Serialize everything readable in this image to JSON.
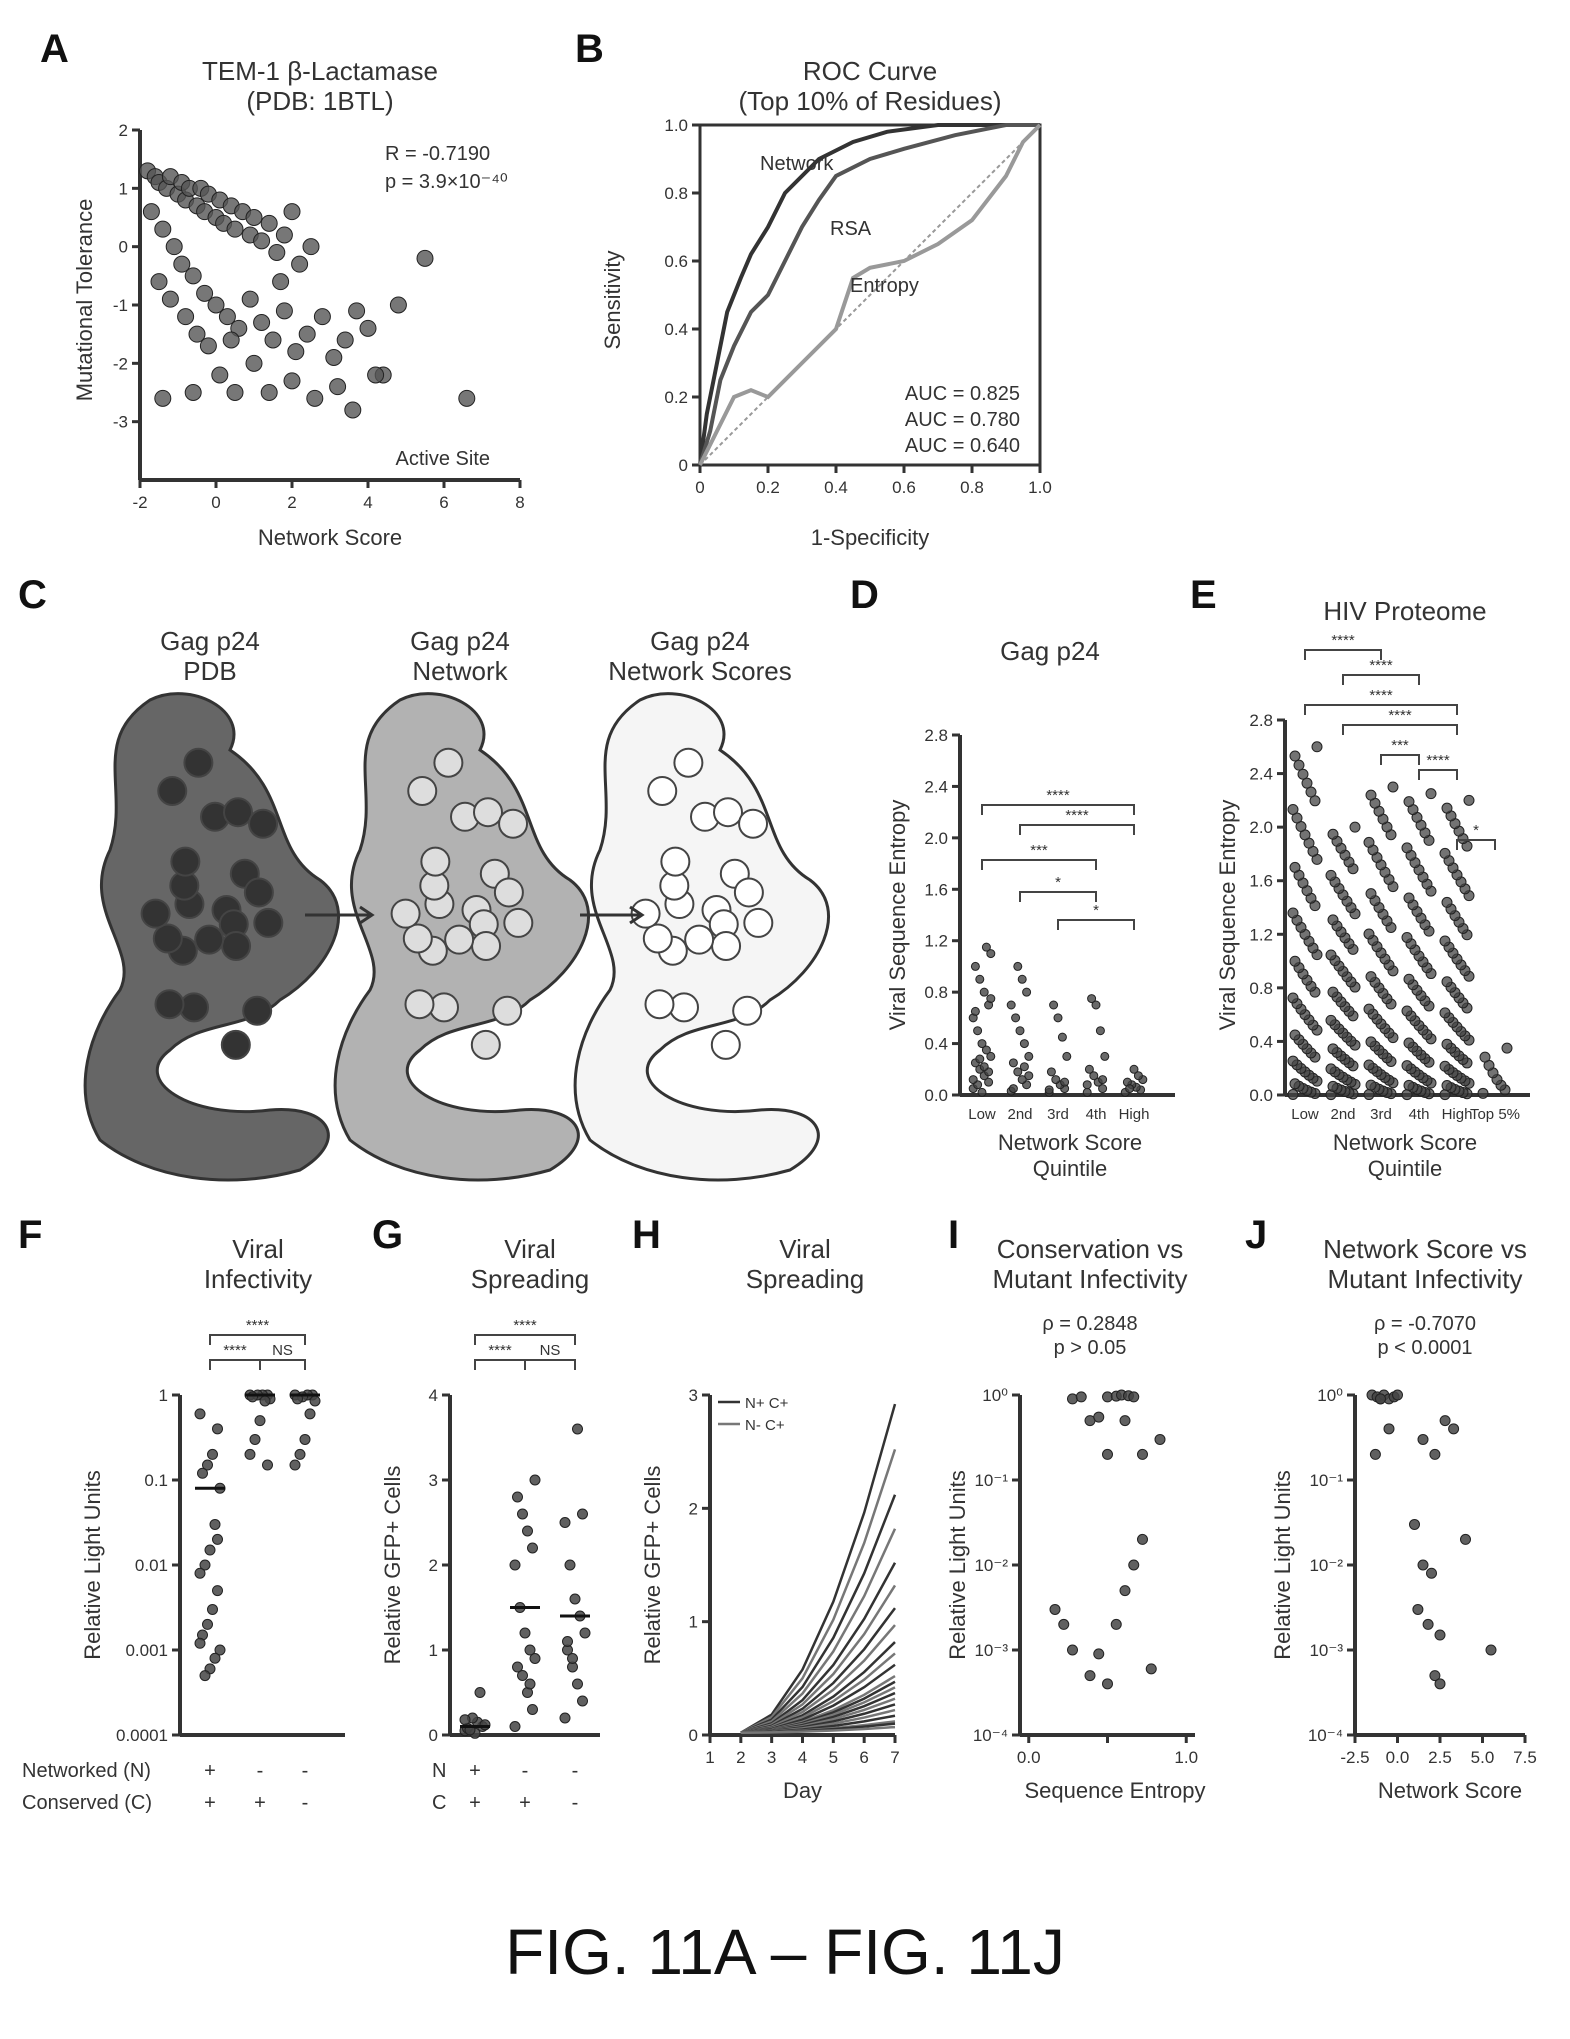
{
  "caption": "FIG. 11A – FIG. 11J",
  "panels": {
    "A": {
      "letter": "A",
      "title_lines": [
        "TEM-1 β-Lactamase",
        "(PDB: 1BTL)"
      ],
      "stats_lines": [
        "R = -0.7190",
        "p = 3.9×10⁻⁴⁰"
      ],
      "annotation": "Active Site"
    },
    "B": {
      "letter": "B",
      "title_lines": [
        "ROC Curve",
        "(Top 10% of Residues)"
      ],
      "auc_lines": [
        "AUC = 0.825",
        "AUC = 0.780",
        "AUC = 0.640"
      ]
    },
    "C": {
      "letter": "C",
      "images": [
        {
          "label_lines": [
            "Gag p24",
            "PDB"
          ]
        },
        {
          "label_lines": [
            "Gag p24",
            "Network"
          ]
        },
        {
          "label_lines": [
            "Gag p24",
            "Network Scores"
          ]
        }
      ]
    },
    "D": {
      "letter": "D",
      "title_lines": [
        "Gag p24"
      ]
    },
    "E": {
      "letter": "E",
      "title_lines": [
        "HIV Proteome"
      ]
    },
    "F": {
      "letter": "F",
      "title_lines": [
        "Viral",
        "Infectivity"
      ],
      "row_labels": [
        "Networked (N)",
        "Conserved (C)"
      ],
      "row_values": [
        [
          "+",
          "-",
          "-"
        ],
        [
          "+",
          "+",
          "-"
        ]
      ]
    },
    "G": {
      "letter": "G",
      "title_lines": [
        "Viral",
        "Spreading"
      ],
      "row_labels": [
        "N",
        "C"
      ],
      "row_values": [
        [
          "+",
          "-",
          "-"
        ],
        [
          "+",
          "+",
          "-"
        ]
      ]
    },
    "H": {
      "letter": "H",
      "title_lines": [
        "Viral",
        "Spreading"
      ]
    },
    "I": {
      "letter": "I",
      "title_lines": [
        "Conservation vs",
        "Mutant Infectivity"
      ],
      "stats_lines": [
        "ρ = 0.2848",
        "p > 0.05"
      ]
    },
    "J": {
      "letter": "J",
      "title_lines": [
        "Network Score vs",
        "Mutant Infectivity"
      ],
      "stats_lines": [
        "ρ = -0.7070",
        "p < 0.0001"
      ]
    }
  },
  "chart_data": [
    {
      "panel": "A",
      "type": "scatter",
      "xlabel": "Network Score",
      "ylabel": "Mutational Tolerance",
      "xlim": [
        -2,
        8
      ],
      "ylim": [
        -4,
        2
      ],
      "xticks": [
        "-2",
        "0",
        "2",
        "4",
        "6",
        "8"
      ],
      "yticks": [
        "-3",
        "-2",
        "-1",
        "0",
        "1",
        "2"
      ],
      "points": [
        [
          -1.8,
          1.3
        ],
        [
          -1.6,
          1.2
        ],
        [
          -1.5,
          1.1
        ],
        [
          -1.3,
          1.0
        ],
        [
          -1.2,
          1.2
        ],
        [
          -1.0,
          0.9
        ],
        [
          -0.9,
          1.1
        ],
        [
          -0.8,
          0.8
        ],
        [
          -0.7,
          1.0
        ],
        [
          -0.5,
          0.7
        ],
        [
          -0.4,
          1.0
        ],
        [
          -0.3,
          0.6
        ],
        [
          -0.2,
          0.9
        ],
        [
          0.0,
          0.5
        ],
        [
          0.1,
          0.8
        ],
        [
          0.2,
          0.4
        ],
        [
          0.4,
          0.7
        ],
        [
          0.5,
          0.3
        ],
        [
          0.7,
          0.6
        ],
        [
          0.9,
          0.2
        ],
        [
          1.0,
          0.5
        ],
        [
          1.2,
          0.1
        ],
        [
          1.4,
          0.4
        ],
        [
          1.6,
          -0.1
        ],
        [
          1.8,
          0.2
        ],
        [
          2.0,
          0.6
        ],
        [
          2.2,
          -0.3
        ],
        [
          2.5,
          0.0
        ],
        [
          -1.7,
          0.6
        ],
        [
          -1.4,
          0.3
        ],
        [
          -1.1,
          0.0
        ],
        [
          -0.9,
          -0.3
        ],
        [
          -0.6,
          -0.5
        ],
        [
          -0.3,
          -0.8
        ],
        [
          0.0,
          -1.0
        ],
        [
          0.3,
          -1.2
        ],
        [
          0.6,
          -1.4
        ],
        [
          0.9,
          -0.9
        ],
        [
          1.2,
          -1.3
        ],
        [
          1.5,
          -1.6
        ],
        [
          1.8,
          -1.1
        ],
        [
          2.1,
          -1.8
        ],
        [
          2.4,
          -1.5
        ],
        [
          2.8,
          -1.2
        ],
        [
          3.1,
          -1.9
        ],
        [
          3.4,
          -1.6
        ],
        [
          3.7,
          -1.1
        ],
        [
          4.0,
          -1.4
        ],
        [
          4.4,
          -2.2
        ],
        [
          4.8,
          -1.0
        ],
        [
          -1.5,
          -0.6
        ],
        [
          -1.2,
          -0.9
        ],
        [
          -0.8,
          -1.2
        ],
        [
          -0.5,
          -1.5
        ],
        [
          -0.2,
          -1.7
        ],
        [
          0.1,
          -2.2
        ],
        [
          0.5,
          -2.5
        ],
        [
          1.0,
          -2.0
        ],
        [
          1.4,
          -2.5
        ],
        [
          2.0,
          -2.3
        ],
        [
          2.6,
          -2.6
        ],
        [
          3.2,
          -2.4
        ],
        [
          3.6,
          -2.8
        ],
        [
          4.2,
          -2.2
        ],
        [
          5.5,
          -0.2
        ],
        [
          6.6,
          -2.6
        ],
        [
          -1.4,
          -2.6
        ],
        [
          -0.6,
          -2.5
        ],
        [
          0.4,
          -1.6
        ],
        [
          1.7,
          -0.6
        ]
      ]
    },
    {
      "panel": "B",
      "type": "line",
      "xlabel": "1-Specificity",
      "ylabel": "Sensitivity",
      "xlim": [
        0,
        1
      ],
      "ylim": [
        0,
        1
      ],
      "xticks": [
        "0",
        "0.2",
        "0.4",
        "0.6",
        "0.8",
        "1.0"
      ],
      "yticks": [
        "0",
        "0.2",
        "0.4",
        "0.6",
        "0.8",
        "1.0"
      ],
      "series": [
        {
          "name": "Network",
          "x": [
            0,
            0.02,
            0.05,
            0.08,
            0.12,
            0.15,
            0.2,
            0.25,
            0.3,
            0.35,
            0.45,
            0.55,
            0.7,
            0.85,
            1.0
          ],
          "y": [
            0,
            0.15,
            0.3,
            0.45,
            0.55,
            0.62,
            0.7,
            0.8,
            0.85,
            0.9,
            0.95,
            0.98,
            1.0,
            1.0,
            1.0
          ]
        },
        {
          "name": "RSA",
          "x": [
            0,
            0.03,
            0.06,
            0.1,
            0.15,
            0.2,
            0.25,
            0.3,
            0.35,
            0.4,
            0.5,
            0.6,
            0.75,
            0.9,
            1.0
          ],
          "y": [
            0,
            0.1,
            0.25,
            0.35,
            0.45,
            0.5,
            0.6,
            0.7,
            0.78,
            0.85,
            0.9,
            0.93,
            0.97,
            1.0,
            1.0
          ]
        },
        {
          "name": "Entropy",
          "x": [
            0,
            0.05,
            0.1,
            0.15,
            0.2,
            0.3,
            0.4,
            0.45,
            0.5,
            0.6,
            0.7,
            0.8,
            0.9,
            0.95,
            1.0
          ],
          "y": [
            0,
            0.1,
            0.2,
            0.22,
            0.2,
            0.3,
            0.4,
            0.55,
            0.58,
            0.6,
            0.65,
            0.72,
            0.85,
            0.95,
            1.0
          ]
        }
      ]
    },
    {
      "panel": "D",
      "type": "scatter",
      "xlabel": "Network Score Quintile",
      "ylabel": "Viral Sequence Entropy",
      "ylim": [
        0,
        2.8
      ],
      "categories": [
        "Low",
        "2nd",
        "3rd",
        "4th",
        "High"
      ],
      "yticks": [
        "0.0",
        "0.4",
        "0.8",
        "1.2",
        "1.6",
        "2.0",
        "2.4",
        "2.8"
      ],
      "significance": [
        "****",
        "****",
        "***",
        "*",
        "*"
      ],
      "values": [
        [
          0.05,
          0.1,
          0.15,
          0.2,
          0.25,
          0.3,
          0.35,
          0.4,
          0.5,
          0.6,
          0.7,
          0.8,
          0.9,
          1.0,
          1.1,
          1.15,
          0.02,
          0.08,
          0.12,
          0.18,
          0.22,
          0.28,
          0.65,
          0.75
        ],
        [
          0.03,
          0.08,
          0.12,
          0.18,
          0.25,
          0.3,
          0.4,
          0.5,
          0.6,
          0.7,
          0.8,
          0.9,
          1.0,
          0.05,
          0.15,
          0.22
        ],
        [
          0.02,
          0.05,
          0.08,
          0.12,
          0.18,
          0.3,
          0.45,
          0.6,
          0.7,
          0.04,
          0.1
        ],
        [
          0.02,
          0.05,
          0.1,
          0.15,
          0.2,
          0.3,
          0.5,
          0.7,
          0.75,
          0.08,
          0.12
        ],
        [
          0.02,
          0.04,
          0.06,
          0.08,
          0.1,
          0.12,
          0.15,
          0.2,
          0.05
        ]
      ]
    },
    {
      "panel": "E",
      "type": "scatter",
      "xlabel": "Network Score Quintile",
      "ylabel": "Viral Sequence Entropy",
      "ylim": [
        0,
        2.8
      ],
      "categories": [
        "Low",
        "2nd",
        "3rd",
        "4th",
        "High",
        "Top 5%"
      ],
      "yticks": [
        "0.0",
        "0.4",
        "0.8",
        "1.2",
        "1.6",
        "2.0",
        "2.4",
        "2.8"
      ],
      "significance": [
        "****",
        "****",
        "****",
        "****",
        "***",
        "****",
        "*"
      ],
      "column_max": [
        2.6,
        2.0,
        2.3,
        2.25,
        2.2,
        0.35
      ]
    },
    {
      "panel": "F",
      "type": "scatter",
      "ylabel": "Relative Light Units",
      "yscale": "log",
      "ylim": [
        0.0001,
        1
      ],
      "yticks": [
        "0.0001",
        "0.001",
        "0.01",
        "0.1",
        "1"
      ],
      "significance": [
        "****",
        "****",
        "NS"
      ],
      "values": [
        [
          0.6,
          0.4,
          0.2,
          0.15,
          0.12,
          0.08,
          0.03,
          0.015,
          0.01,
          0.008,
          0.005,
          0.003,
          0.002,
          0.0015,
          0.001,
          0.0008,
          0.0006,
          0.0005,
          0.0012,
          0.02
        ],
        [
          1,
          1,
          1,
          1,
          0.95,
          0.9,
          0.85,
          0.5,
          0.3,
          0.2,
          0.15
        ],
        [
          1,
          1,
          1,
          0.95,
          0.9,
          0.85,
          0.6,
          0.3,
          0.2,
          0.15
        ]
      ],
      "medians": [
        0.08,
        1,
        1
      ]
    },
    {
      "panel": "G",
      "type": "scatter",
      "ylabel": "Relative GFP+ Cells",
      "ylim": [
        0,
        4
      ],
      "yticks": [
        "0",
        "1",
        "2",
        "3",
        "4"
      ],
      "significance": [
        "****",
        "****",
        "NS"
      ],
      "values": [
        [
          0.05,
          0.1,
          0.15,
          0.2,
          0.08,
          0.12,
          0.5,
          0.02,
          0.06,
          0.18
        ],
        [
          0.1,
          0.3,
          0.5,
          0.7,
          0.8,
          0.9,
          1.0,
          1.2,
          1.5,
          2.0,
          2.2,
          2.4,
          2.6,
          2.8,
          3.0,
          0.6
        ],
        [
          0.2,
          0.4,
          0.6,
          0.8,
          1.0,
          1.2,
          1.4,
          1.6,
          2.0,
          2.5,
          2.6,
          3.6,
          0.9,
          1.1
        ]
      ],
      "medians": [
        0.1,
        1.5,
        1.4
      ]
    },
    {
      "panel": "H",
      "type": "line",
      "xlabel": "Day",
      "ylabel": "Relative GFP+ Cells",
      "xlim": [
        1,
        7
      ],
      "ylim": [
        0,
        3
      ],
      "xticks": [
        "1",
        "2",
        "3",
        "4",
        "5",
        "6",
        "7"
      ],
      "yticks": [
        "0",
        "1",
        "2",
        "3"
      ],
      "legend": [
        "N+ C+",
        "N- C+"
      ],
      "final_values": [
        2.9,
        2.5,
        2.1,
        1.8,
        1.5,
        1.3,
        1.1,
        0.95,
        0.8,
        0.7,
        0.6,
        0.5,
        0.45,
        0.4,
        0.35,
        0.3,
        0.25,
        0.2,
        0.15,
        0.1,
        0.08,
        0.05
      ]
    },
    {
      "panel": "I",
      "type": "scatter",
      "xlabel": "Sequence Entropy",
      "ylabel": "Relative Light Units",
      "yscale": "log",
      "xlim": [
        0,
        1
      ],
      "xticks": [
        "0.0",
        "",
        "1.0"
      ],
      "yticks": [
        "10⁻⁴",
        "10⁻³",
        "10⁻²",
        "10⁻¹",
        "10⁰"
      ],
      "points": [
        [
          0.3,
          0.9
        ],
        [
          0.35,
          0.95
        ],
        [
          0.5,
          0.95
        ],
        [
          0.55,
          0.97
        ],
        [
          0.58,
          1
        ],
        [
          0.62,
          0.98
        ],
        [
          0.65,
          0.95
        ],
        [
          0.4,
          0.5
        ],
        [
          0.45,
          0.55
        ],
        [
          0.5,
          0.2
        ],
        [
          0.6,
          0.5
        ],
        [
          0.7,
          0.2
        ],
        [
          0.2,
          0.003
        ],
        [
          0.25,
          0.002
        ],
        [
          0.3,
          0.001
        ],
        [
          0.4,
          0.0005
        ],
        [
          0.5,
          0.0004
        ],
        [
          0.6,
          0.005
        ],
        [
          0.65,
          0.01
        ],
        [
          0.7,
          0.02
        ],
        [
          0.75,
          0.0006
        ],
        [
          0.45,
          0.0009
        ],
        [
          0.55,
          0.002
        ],
        [
          0.8,
          0.3
        ]
      ]
    },
    {
      "panel": "J",
      "type": "scatter",
      "xlabel": "Network Score",
      "ylabel": "Relative Light Units",
      "yscale": "log",
      "xlim": [
        -2.5,
        7.5
      ],
      "xticks": [
        "-2.5",
        "0.0",
        "2.5",
        "5.0",
        "7.5"
      ],
      "yticks": [
        "10⁻⁴",
        "10⁻³",
        "10⁻²",
        "10⁻¹",
        "10⁰"
      ],
      "points": [
        [
          -1.5,
          1
        ],
        [
          -1.2,
          0.95
        ],
        [
          -1.0,
          0.9
        ],
        [
          -0.8,
          1
        ],
        [
          -0.5,
          0.9
        ],
        [
          -0.2,
          0.95
        ],
        [
          0.0,
          1
        ],
        [
          -1.3,
          0.2
        ],
        [
          -0.5,
          0.4
        ],
        [
          1.5,
          0.3
        ],
        [
          2.2,
          0.2
        ],
        [
          2.8,
          0.5
        ],
        [
          3.3,
          0.4
        ],
        [
          1.0,
          0.03
        ],
        [
          1.5,
          0.01
        ],
        [
          2.0,
          0.008
        ],
        [
          2.5,
          0.0015
        ],
        [
          1.8,
          0.002
        ],
        [
          2.2,
          0.0005
        ],
        [
          2.5,
          0.0004
        ],
        [
          4.0,
          0.02
        ],
        [
          5.5,
          0.001
        ],
        [
          1.2,
          0.003
        ],
        [
          -1.0,
          0.9
        ]
      ]
    }
  ]
}
